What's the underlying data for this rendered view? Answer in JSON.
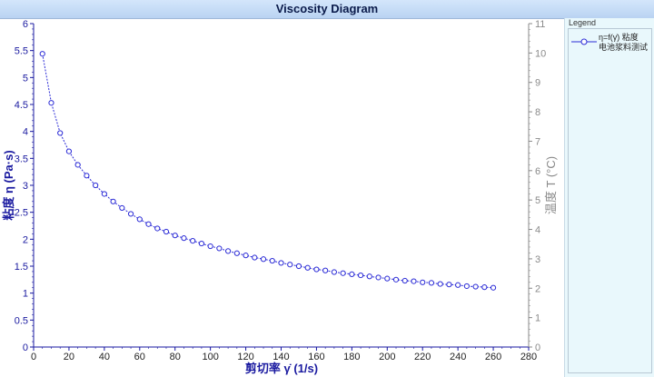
{
  "window": {
    "title": "Viscosity Diagram"
  },
  "legend": {
    "title": "Legend",
    "series_label": "η=f(γ̇) 粘度",
    "series_sublabel": "电池浆料测试"
  },
  "colors": {
    "series": "#2b2bd6",
    "left_axis": "#1a1aa0",
    "right_axis": "#8a8a8a",
    "title_bar": "#c7ddf7",
    "legend_bg": "#e9f8fc"
  },
  "chart_data": {
    "type": "line",
    "title": "Viscosity Diagram",
    "xlabel": "剪切率 γ̇ (1/s)",
    "ylabel": "粘度 η (Pa·s)",
    "y2label": "温度 T (°C)",
    "xlim": [
      0,
      280
    ],
    "ylim": [
      0,
      6
    ],
    "y2lim": [
      0,
      11
    ],
    "x_ticks": [
      "0",
      "20",
      "40",
      "60",
      "80",
      "100",
      "120",
      "140",
      "160",
      "180",
      "200",
      "220",
      "240",
      "260",
      "280"
    ],
    "y_ticks": [
      "0",
      "0.5",
      "1",
      "1.5",
      "2",
      "2.5",
      "3",
      "3.5",
      "4",
      "4.5",
      "5",
      "5.5",
      "6"
    ],
    "y2_ticks": [
      "0",
      "1",
      "2",
      "3",
      "4",
      "5",
      "6",
      "7",
      "8",
      "9",
      "10",
      "11"
    ],
    "grid": false,
    "legend_position": "right",
    "series": [
      {
        "name": "η=f(γ̇) 粘度 电池浆料测试",
        "marker": "circle",
        "x": [
          5,
          10,
          15,
          20,
          25,
          30,
          35,
          40,
          45,
          50,
          55,
          60,
          65,
          70,
          75,
          80,
          85,
          90,
          95,
          100,
          105,
          110,
          115,
          120,
          125,
          130,
          135,
          140,
          145,
          150,
          155,
          160,
          165,
          170,
          175,
          180,
          185,
          190,
          195,
          200,
          205,
          210,
          215,
          220,
          225,
          230,
          235,
          240,
          245,
          250,
          255,
          260
        ],
        "y": [
          5.44,
          4.53,
          3.97,
          3.63,
          3.38,
          3.18,
          3.0,
          2.84,
          2.7,
          2.58,
          2.47,
          2.37,
          2.28,
          2.2,
          2.14,
          2.07,
          2.02,
          1.97,
          1.92,
          1.87,
          1.83,
          1.78,
          1.74,
          1.7,
          1.66,
          1.63,
          1.6,
          1.56,
          1.53,
          1.5,
          1.47,
          1.44,
          1.42,
          1.39,
          1.37,
          1.35,
          1.33,
          1.31,
          1.29,
          1.27,
          1.25,
          1.23,
          1.22,
          1.2,
          1.19,
          1.17,
          1.16,
          1.15,
          1.13,
          1.12,
          1.11,
          1.1
        ]
      }
    ]
  }
}
